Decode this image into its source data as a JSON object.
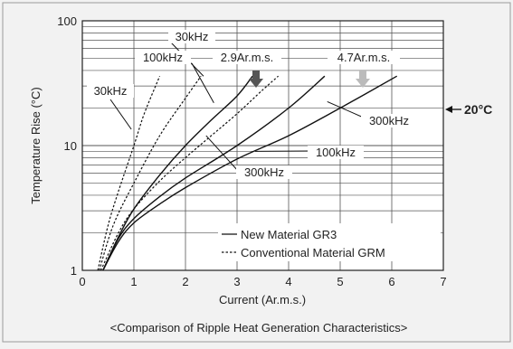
{
  "chart_data": {
    "type": "line",
    "title": "",
    "caption": "<Comparison of Ripple Heat Generation Characteristics>",
    "xlabel": "Current (Ar.m.s.)",
    "ylabel": "Temperature Rise (°C)",
    "xlim": [
      0,
      7
    ],
    "ylim": [
      1,
      100
    ],
    "yscale": "log",
    "grid": true,
    "x_ticks": [
      "0",
      "1",
      "2",
      "3",
      "4",
      "5",
      "6",
      "7"
    ],
    "y_ticks": [
      {
        "value": 1,
        "label": "1"
      },
      {
        "value": 10,
        "label": "10"
      },
      {
        "value": 100,
        "label": "100"
      }
    ],
    "legend": {
      "placement": "bottom-right",
      "entries": [
        {
          "label": "New Material GR3",
          "style": "solid"
        },
        {
          "label": "Conventional Material GRM",
          "style": "dashed"
        }
      ]
    },
    "reference": {
      "label": "20°C",
      "value": 20
    },
    "series": [
      {
        "material": "GR3",
        "frequency": "30kHz",
        "style": "solid",
        "x": [
          0.4,
          0.7,
          1.0,
          1.5,
          2.0,
          2.5,
          3.0,
          3.3
        ],
        "y": [
          1.0,
          1.85,
          3.1,
          5.8,
          10.0,
          16.0,
          25.0,
          36.0
        ]
      },
      {
        "material": "GR3",
        "frequency": "100kHz",
        "style": "solid",
        "x": [
          0.4,
          0.7,
          1.0,
          1.5,
          2.0,
          3.0,
          4.0,
          4.7
        ],
        "y": [
          1.0,
          1.8,
          2.6,
          3.9,
          5.5,
          10.0,
          20.0,
          36.0
        ]
      },
      {
        "material": "GR3",
        "frequency": "300kHz",
        "style": "solid",
        "x": [
          0.4,
          0.7,
          1.0,
          1.5,
          2.0,
          3.0,
          4.0,
          5.0,
          6.1
        ],
        "y": [
          1.0,
          1.7,
          2.4,
          3.4,
          4.6,
          7.8,
          12.0,
          20.0,
          36.0
        ]
      },
      {
        "material": "GRM",
        "frequency": "30kHz",
        "style": "dashed",
        "x": [
          0.3,
          0.5,
          0.7,
          1.0,
          1.2,
          1.5
        ],
        "y": [
          1.0,
          2.3,
          4.3,
          10.0,
          18.0,
          36.0
        ]
      },
      {
        "material": "GRM",
        "frequency": "100kHz",
        "style": "dashed",
        "x": [
          0.33,
          0.6,
          1.0,
          1.5,
          2.0,
          2.3
        ],
        "y": [
          1.0,
          2.3,
          5.0,
          12.0,
          24.0,
          36.0
        ]
      },
      {
        "material": "GRM",
        "frequency": "300kHz",
        "style": "dashed",
        "x": [
          0.36,
          0.7,
          1.0,
          1.5,
          2.0,
          2.5,
          3.0,
          3.5,
          3.8
        ],
        "y": [
          1.0,
          2.0,
          3.1,
          5.2,
          8.0,
          12.0,
          18.0,
          28.0,
          36.0
        ]
      }
    ],
    "annotations": {
      "gr3_30k_top": "30kHz",
      "gr3_100k_top": "100kHz",
      "grm_30k": "30kHz",
      "limit_grm": "2.9Ar.m.s.",
      "limit_gr3": "4.7Ar.m.s.",
      "gr3_300k_right": "300kHz",
      "mid_100k": "100kHz",
      "mid_300k": "300kHz"
    }
  }
}
